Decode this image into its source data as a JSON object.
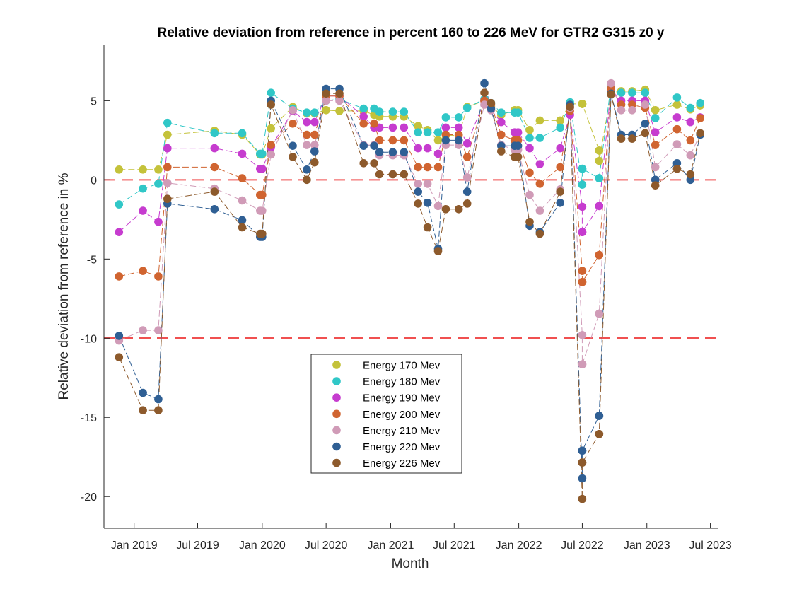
{
  "chart_data": {
    "type": "line",
    "title": "Relative deviation from reference in percent 160 to 226 MeV for GTR2 G315 z0 y",
    "xlabel": "Month",
    "ylabel": "Relative deviation from reference in %",
    "xlim": [
      "2018-10-07",
      "2023-07-22"
    ],
    "ylim": [
      -22,
      8.5
    ],
    "grid": false,
    "legend_position": "bottom-center",
    "x_ticks": [
      "Jan 2019",
      "Jul 2019",
      "Jan 2020",
      "Jul 2020",
      "Jan 2021",
      "Jul 2021",
      "Jan 2022",
      "Jul 2022",
      "Jan 2023",
      "Jul 2023"
    ],
    "x_tick_dates": [
      "2019-01-01",
      "2019-07-01",
      "2020-01-01",
      "2020-07-01",
      "2021-01-01",
      "2021-07-01",
      "2022-01-01",
      "2022-07-01",
      "2023-01-01",
      "2023-07-01"
    ],
    "y_ticks": [
      5,
      0,
      -5,
      -10,
      -15,
      -20
    ],
    "y_tick_labels": [
      "5",
      "0",
      "-5",
      "-10",
      "-15",
      "-20"
    ],
    "reference_lines": [
      {
        "y": 0,
        "color": "#f05050",
        "style": "dashed"
      },
      {
        "y": -10,
        "color": "#f05050",
        "style": "dashed"
      }
    ],
    "x": [
      "2018-11-19",
      "2019-01-26",
      "2019-03-11",
      "2019-04-06",
      "2019-08-18",
      "2019-11-05",
      "2019-12-26",
      "2020-01-01",
      "2020-01-26",
      "2020-03-28",
      "2020-05-07",
      "2020-05-29",
      "2020-07-01",
      "2020-08-08",
      "2020-10-16",
      "2020-11-15",
      "2020-11-30",
      "2021-01-07",
      "2021-02-08",
      "2021-03-20",
      "2021-04-16",
      "2021-05-16",
      "2021-06-07",
      "2021-07-14",
      "2021-08-07",
      "2021-09-25",
      "2021-10-14",
      "2021-11-12",
      "2021-12-20",
      "2021-12-30",
      "2022-02-01",
      "2022-03-02",
      "2022-04-29",
      "2022-05-27",
      "2022-07-01",
      "2022-07-01",
      "2022-07-01",
      "2022-07-01",
      "2022-08-18",
      "2022-08-18",
      "2022-08-18",
      "2022-09-21",
      "2022-10-20",
      "2022-11-20",
      "2022-12-27",
      "2023-01-25",
      "2023-03-28",
      "2023-05-05",
      "2023-06-02"
    ],
    "series": [
      {
        "name": "Energy 170 Mev",
        "color": "#c4c23a",
        "values": [
          0.65,
          0.65,
          0.65,
          2.85,
          3.1,
          2.85,
          1.6,
          1.6,
          3.25,
          4.6,
          4.2,
          4.2,
          4.4,
          4.35,
          4.35,
          4.1,
          4.0,
          4.0,
          4.0,
          3.4,
          3.15,
          2.5,
          2.8,
          2.8,
          4.6,
          5.0,
          4.65,
          4.1,
          4.4,
          4.4,
          3.15,
          3.75,
          3.75,
          4.8,
          4.8,
          4.8,
          4.8,
          4.8,
          1.85,
          1.85,
          1.2,
          5.5,
          5.6,
          5.6,
          5.7,
          4.4,
          4.75,
          4.45,
          4.7
        ]
      },
      {
        "name": "Energy 180 Mev",
        "color": "#30c7c7",
        "values": [
          -1.55,
          -0.55,
          -0.25,
          3.6,
          2.95,
          2.95,
          1.65,
          1.65,
          5.5,
          4.5,
          4.25,
          4.25,
          5.0,
          5.1,
          4.5,
          4.5,
          4.3,
          4.3,
          4.3,
          3.0,
          3.0,
          3.0,
          3.95,
          3.95,
          4.55,
          5.1,
          4.85,
          4.25,
          4.25,
          4.25,
          2.65,
          2.65,
          3.3,
          4.9,
          -0.3,
          0.7,
          0.7,
          0.7,
          0.1,
          0.1,
          0.1,
          6.0,
          5.5,
          5.5,
          5.5,
          3.9,
          5.2,
          4.55,
          4.85
        ]
      },
      {
        "name": "Energy 190 Mev",
        "color": "#c63ccf",
        "values": [
          -3.3,
          -1.95,
          -2.65,
          2.0,
          2.0,
          1.65,
          0.7,
          0.7,
          2.05,
          4.35,
          3.65,
          3.65,
          5.3,
          5.3,
          4.0,
          3.3,
          3.3,
          3.3,
          3.3,
          2.0,
          2.0,
          1.65,
          3.3,
          3.3,
          2.3,
          5.0,
          4.4,
          3.65,
          3.0,
          3.0,
          2.0,
          1.0,
          2.0,
          4.1,
          -1.7,
          -3.3,
          -3.3,
          -3.3,
          -1.65,
          -1.65,
          -1.65,
          5.7,
          5.0,
          5.0,
          5.0,
          3.0,
          3.95,
          3.65,
          3.95
        ]
      },
      {
        "name": "Energy 200 Mev",
        "color": "#d06430",
        "values": [
          -6.1,
          -5.75,
          -6.1,
          0.8,
          0.8,
          0.1,
          -0.95,
          -0.95,
          2.2,
          3.55,
          2.85,
          2.85,
          5.3,
          5.3,
          3.55,
          3.55,
          2.5,
          2.5,
          2.5,
          0.8,
          0.8,
          0.8,
          2.85,
          2.85,
          1.45,
          5.0,
          4.75,
          2.85,
          2.5,
          2.5,
          0.45,
          -0.25,
          0.8,
          4.35,
          -5.75,
          -6.45,
          -6.45,
          -6.45,
          -4.75,
          -4.75,
          -4.75,
          5.75,
          4.75,
          4.75,
          4.55,
          2.2,
          3.2,
          2.5,
          3.9
        ]
      },
      {
        "name": "Energy 210 Mev",
        "color": "#d09bb7",
        "values": [
          -10.15,
          -9.5,
          -9.5,
          -0.2,
          -0.55,
          -1.3,
          -1.95,
          -1.95,
          1.6,
          4.4,
          2.2,
          2.2,
          5.0,
          5.0,
          2.2,
          2.2,
          1.55,
          1.55,
          1.55,
          -0.25,
          -0.25,
          -1.65,
          2.2,
          2.2,
          0.15,
          4.75,
          4.4,
          2.2,
          1.9,
          1.9,
          -0.95,
          -1.95,
          -0.6,
          4.55,
          -9.8,
          -11.65,
          -11.65,
          -11.65,
          -8.45,
          -8.45,
          -8.45,
          6.1,
          4.4,
          4.4,
          4.75,
          0.8,
          2.25,
          1.55,
          2.9
        ]
      },
      {
        "name": "Energy 220 Mev",
        "color": "#2f5f94",
        "values": [
          -9.85,
          -13.45,
          -13.85,
          -1.5,
          -1.85,
          -2.55,
          -3.6,
          -3.6,
          5.0,
          2.15,
          0.65,
          1.8,
          5.75,
          5.75,
          2.15,
          2.15,
          1.75,
          1.75,
          1.75,
          -0.75,
          -1.45,
          -4.35,
          2.5,
          2.5,
          -0.75,
          6.1,
          4.5,
          2.15,
          2.15,
          2.15,
          -2.9,
          -3.3,
          -1.45,
          4.75,
          -18.85,
          -17.1,
          -17.1,
          -17.1,
          -14.9,
          -14.9,
          -14.9,
          5.45,
          2.85,
          2.85,
          3.55,
          0.0,
          1.05,
          0.0,
          2.85
        ]
      },
      {
        "name": "Energy 226 Mev",
        "color": "#8d5a2c",
        "values": [
          -11.2,
          -14.55,
          -14.55,
          -1.2,
          -0.75,
          -3.0,
          -3.4,
          -3.4,
          4.75,
          1.45,
          0.0,
          1.1,
          5.45,
          5.45,
          1.05,
          1.05,
          0.35,
          0.35,
          0.35,
          -1.5,
          -3.0,
          -4.5,
          -1.85,
          -1.85,
          -1.5,
          5.5,
          4.85,
          1.8,
          1.45,
          1.45,
          -2.65,
          -3.4,
          -0.75,
          4.6,
          -20.15,
          -17.85,
          -17.85,
          -17.85,
          -16.05,
          -16.05,
          -16.05,
          5.4,
          2.6,
          2.6,
          2.95,
          -0.35,
          0.7,
          0.35,
          2.95
        ]
      }
    ]
  }
}
